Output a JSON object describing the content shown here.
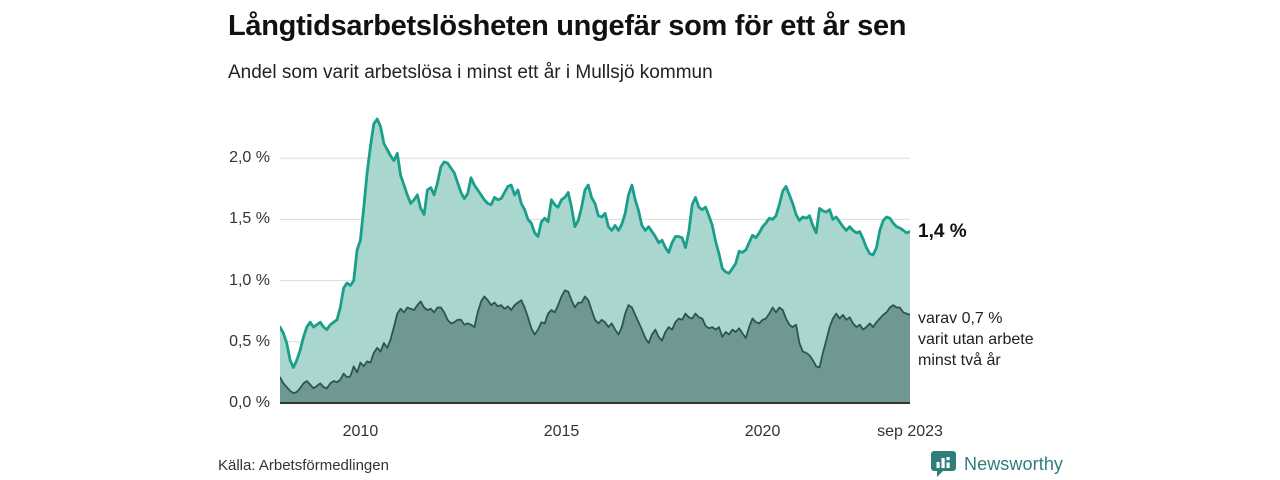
{
  "header": {
    "title": "Långtidsarbetslösheten ungefär som för ett år sen",
    "subtitle": "Andel som varit arbetslösa i minst ett år i Mullsjö kommun"
  },
  "annotations": {
    "total_end_label": "1,4 %",
    "subset_end_label_lines": [
      "varav 0,7 %",
      "varit utan arbete",
      "minst två år"
    ]
  },
  "source": {
    "label": "Källa: Arbetsförmedlingen"
  },
  "branding": {
    "name": "Newsworthy",
    "icon": "bar-chart-speech-bubble-icon",
    "color": "#2f7e79"
  },
  "chart_data": {
    "type": "area",
    "title": "Långtidsarbetslösheten ungefär som för ett år sen",
    "subtitle": "Andel som varit arbetslösa i minst ett år i Mullsjö kommun",
    "unit": "%",
    "frequency": "monthly",
    "x_start": "2008-01",
    "x_end": "2023-09",
    "ylim": [
      0,
      2.45
    ],
    "grid": true,
    "grid_color": "#dcdcdc",
    "baseline_color": "#333333",
    "y_ticks": [
      {
        "value": 2.0,
        "label": "2,0 %"
      },
      {
        "value": 1.5,
        "label": "1,5 %"
      },
      {
        "value": 1.0,
        "label": "1,0 %"
      },
      {
        "value": 0.5,
        "label": "0,5 %"
      },
      {
        "value": 0.0,
        "label": "0,0 %"
      }
    ],
    "x_ticks": [
      {
        "month_index": 24,
        "label": "2010"
      },
      {
        "month_index": 84,
        "label": "2015"
      },
      {
        "month_index": 144,
        "label": "2020"
      },
      {
        "month_index": 188,
        "label": "sep 2023"
      }
    ],
    "series": [
      {
        "name": "Andel arbetslösa minst ett år",
        "end_value": 1.4,
        "color_line": "#1b9e8a",
        "color_fill": "#a9d7d0",
        "line_width": 2.8,
        "values": [
          0.62,
          0.57,
          0.49,
          0.35,
          0.29,
          0.35,
          0.43,
          0.54,
          0.62,
          0.66,
          0.62,
          0.64,
          0.66,
          0.62,
          0.6,
          0.64,
          0.66,
          0.68,
          0.78,
          0.94,
          0.98,
          0.96,
          1.0,
          1.25,
          1.33,
          1.6,
          1.88,
          2.1,
          2.28,
          2.32,
          2.26,
          2.12,
          2.07,
          2.02,
          1.98,
          2.04,
          1.86,
          1.78,
          1.7,
          1.63,
          1.66,
          1.7,
          1.59,
          1.54,
          1.74,
          1.76,
          1.7,
          1.8,
          1.93,
          1.97,
          1.96,
          1.92,
          1.88,
          1.8,
          1.72,
          1.67,
          1.71,
          1.84,
          1.78,
          1.74,
          1.7,
          1.66,
          1.63,
          1.62,
          1.68,
          1.66,
          1.67,
          1.72,
          1.77,
          1.78,
          1.7,
          1.74,
          1.63,
          1.58,
          1.5,
          1.47,
          1.39,
          1.36,
          1.48,
          1.51,
          1.48,
          1.66,
          1.62,
          1.6,
          1.66,
          1.68,
          1.72,
          1.6,
          1.44,
          1.49,
          1.6,
          1.74,
          1.78,
          1.68,
          1.63,
          1.53,
          1.52,
          1.55,
          1.44,
          1.41,
          1.45,
          1.41,
          1.46,
          1.55,
          1.7,
          1.78,
          1.66,
          1.57,
          1.45,
          1.41,
          1.44,
          1.4,
          1.36,
          1.31,
          1.33,
          1.27,
          1.23,
          1.31,
          1.36,
          1.36,
          1.35,
          1.27,
          1.4,
          1.62,
          1.68,
          1.6,
          1.58,
          1.6,
          1.53,
          1.45,
          1.32,
          1.22,
          1.1,
          1.07,
          1.06,
          1.1,
          1.14,
          1.24,
          1.23,
          1.25,
          1.31,
          1.37,
          1.35,
          1.39,
          1.44,
          1.47,
          1.51,
          1.5,
          1.53,
          1.62,
          1.73,
          1.77,
          1.7,
          1.63,
          1.54,
          1.49,
          1.52,
          1.51,
          1.53,
          1.45,
          1.39,
          1.59,
          1.57,
          1.56,
          1.58,
          1.5,
          1.52,
          1.48,
          1.44,
          1.41,
          1.44,
          1.41,
          1.39,
          1.4,
          1.34,
          1.27,
          1.22,
          1.21,
          1.27,
          1.41,
          1.49,
          1.52,
          1.51,
          1.47,
          1.44,
          1.43,
          1.41,
          1.39,
          1.4
        ]
      },
      {
        "name": "varav arbetslösa minst två år",
        "end_value": 0.7,
        "color_line": "#2e544e",
        "color_fill": "#6f9894",
        "line_width": 1.8,
        "values": [
          0.21,
          0.16,
          0.13,
          0.1,
          0.08,
          0.09,
          0.12,
          0.16,
          0.18,
          0.15,
          0.12,
          0.14,
          0.16,
          0.13,
          0.12,
          0.16,
          0.18,
          0.17,
          0.19,
          0.24,
          0.21,
          0.22,
          0.3,
          0.25,
          0.33,
          0.3,
          0.34,
          0.33,
          0.41,
          0.45,
          0.42,
          0.49,
          0.45,
          0.52,
          0.62,
          0.73,
          0.77,
          0.74,
          0.78,
          0.77,
          0.76,
          0.8,
          0.83,
          0.78,
          0.76,
          0.77,
          0.74,
          0.78,
          0.78,
          0.74,
          0.68,
          0.65,
          0.66,
          0.68,
          0.68,
          0.64,
          0.65,
          0.64,
          0.62,
          0.74,
          0.83,
          0.87,
          0.84,
          0.8,
          0.82,
          0.79,
          0.8,
          0.77,
          0.79,
          0.76,
          0.8,
          0.82,
          0.84,
          0.78,
          0.7,
          0.61,
          0.56,
          0.6,
          0.66,
          0.65,
          0.73,
          0.76,
          0.74,
          0.8,
          0.87,
          0.92,
          0.91,
          0.84,
          0.78,
          0.82,
          0.82,
          0.87,
          0.84,
          0.76,
          0.68,
          0.65,
          0.68,
          0.66,
          0.62,
          0.65,
          0.6,
          0.56,
          0.62,
          0.73,
          0.8,
          0.78,
          0.72,
          0.66,
          0.6,
          0.53,
          0.49,
          0.56,
          0.6,
          0.54,
          0.51,
          0.58,
          0.62,
          0.6,
          0.66,
          0.69,
          0.68,
          0.73,
          0.7,
          0.69,
          0.73,
          0.7,
          0.69,
          0.63,
          0.61,
          0.62,
          0.6,
          0.62,
          0.54,
          0.58,
          0.56,
          0.6,
          0.58,
          0.61,
          0.57,
          0.53,
          0.62,
          0.69,
          0.66,
          0.65,
          0.68,
          0.69,
          0.73,
          0.78,
          0.74,
          0.78,
          0.76,
          0.69,
          0.64,
          0.62,
          0.64,
          0.49,
          0.42,
          0.41,
          0.39,
          0.35,
          0.3,
          0.29,
          0.41,
          0.51,
          0.62,
          0.69,
          0.73,
          0.69,
          0.72,
          0.68,
          0.7,
          0.65,
          0.62,
          0.64,
          0.6,
          0.62,
          0.65,
          0.62,
          0.66,
          0.69,
          0.72,
          0.74,
          0.78,
          0.8,
          0.78,
          0.78,
          0.74,
          0.73,
          0.72
        ]
      }
    ]
  }
}
